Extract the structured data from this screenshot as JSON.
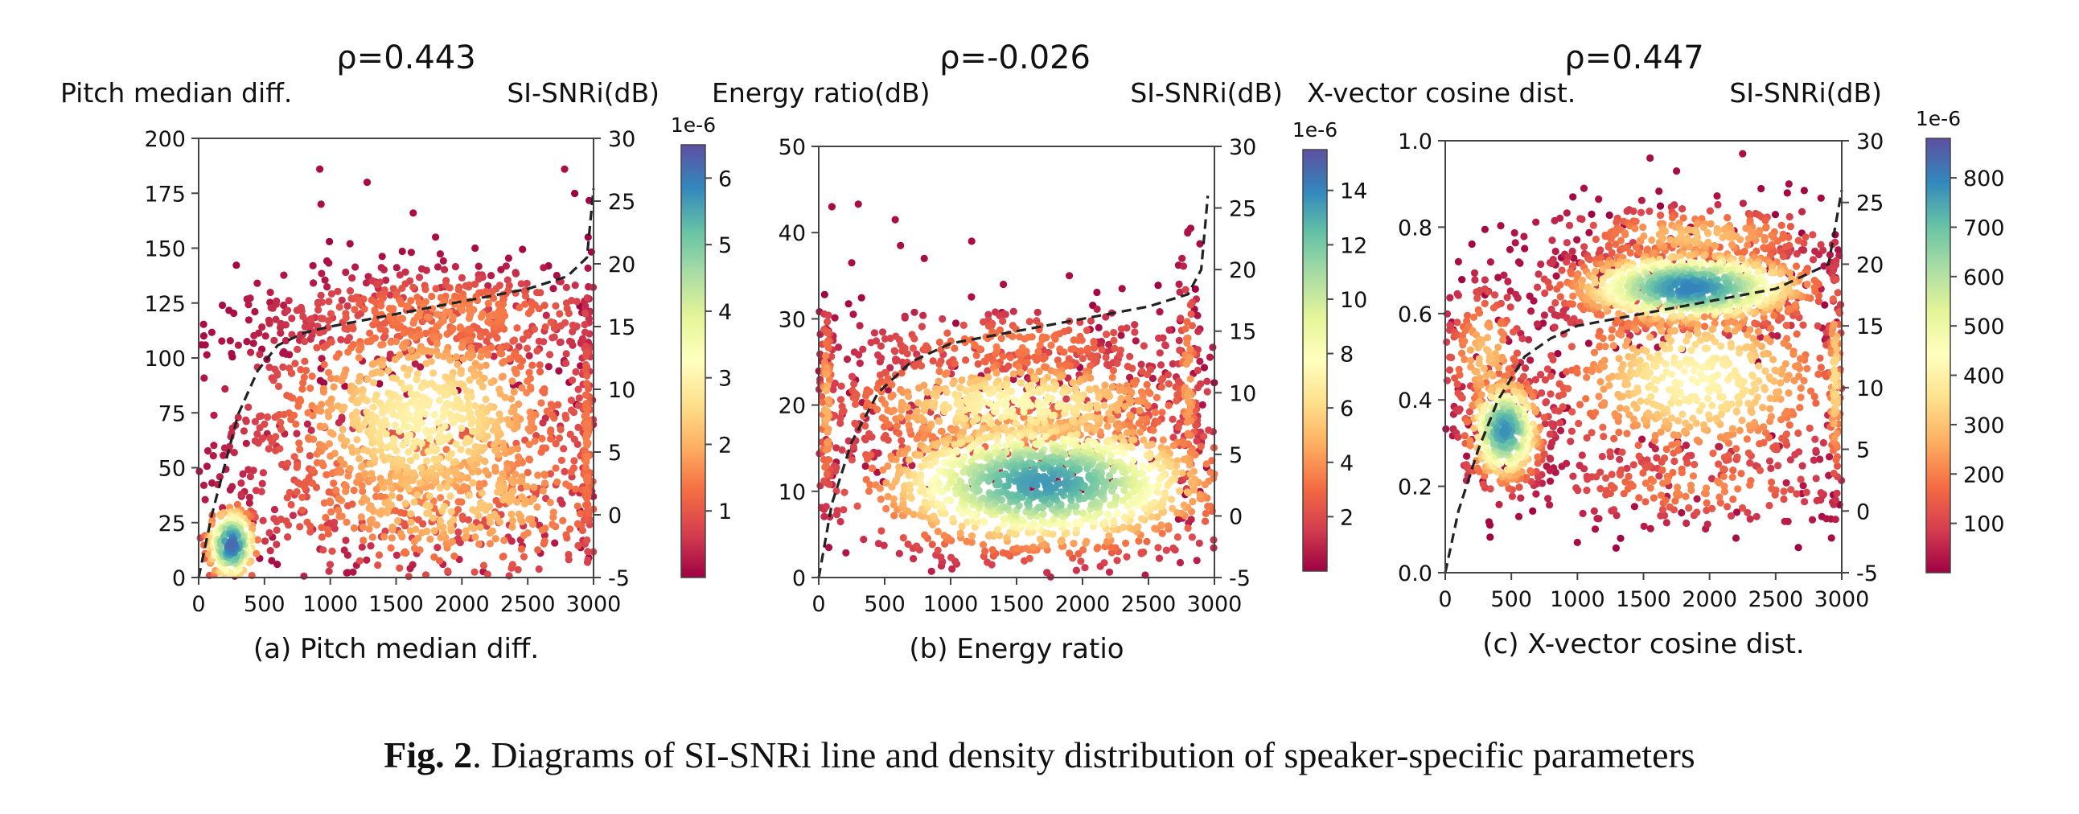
{
  "figure_caption": {
    "label": "Fig. 2",
    "text": ". Diagrams of SI-SNRi line and density distribution of speaker-specific parameters"
  },
  "colormap_stops": [
    "#9e0142",
    "#d53e4f",
    "#f46d43",
    "#fdae61",
    "#fee08b",
    "#ffffbf",
    "#e6f598",
    "#abdda4",
    "#66c2a5",
    "#3288bd",
    "#5e4fa2"
  ],
  "line_color": "#222222",
  "chart_data": [
    {
      "type": "scatter",
      "title": "ρ=0.443",
      "left_axis_label": "Pitch median diff.",
      "right_axis_label": "SI-SNRi(dB)",
      "subcaption": "(a) Pitch median diff.",
      "xlim": [
        0,
        3000
      ],
      "x_ticks": [
        0,
        500,
        1000,
        1500,
        2000,
        2500,
        3000
      ],
      "ylim": [
        0,
        200
      ],
      "y_ticks": [
        0,
        25,
        50,
        75,
        100,
        125,
        150,
        175,
        200
      ],
      "y2lim": [
        -5,
        30
      ],
      "y2_ticks": [
        -5,
        0,
        5,
        10,
        15,
        20,
        25,
        30
      ],
      "colorbar": {
        "exponent_label": "1e-6",
        "ticks": [
          1,
          2,
          3,
          4,
          5,
          6
        ],
        "range": [
          0,
          6.5
        ]
      },
      "si_snri_line": {
        "x": [
          0,
          100,
          200,
          300,
          450,
          600,
          800,
          1000,
          1500,
          2000,
          2500,
          2800,
          2950,
          3000
        ],
        "y": [
          -5,
          0,
          4,
          8,
          11.5,
          13.5,
          14.5,
          15,
          16,
          17,
          18,
          19,
          20.5,
          26
        ]
      },
      "clusters": [
        {
          "x": 250,
          "y": 15,
          "sx": 110,
          "sy": 10,
          "n": 230,
          "density": 6.2
        },
        {
          "x": 1700,
          "y": 72,
          "sx": 700,
          "sy": 30,
          "n": 1150,
          "density": 3.0
        },
        {
          "x": 1900,
          "y": 35,
          "sx": 850,
          "sy": 22,
          "n": 500,
          "density": 2.4
        },
        {
          "x": 1900,
          "y": 120,
          "sx": 800,
          "sy": 12,
          "n": 420,
          "density": 1.6
        },
        {
          "x": 2950,
          "y": 60,
          "sx": 25,
          "sy": 40,
          "n": 140,
          "density": 1.5
        }
      ],
      "outliers": [
        {
          "x": 920,
          "y": 186
        },
        {
          "x": 930,
          "y": 170
        },
        {
          "x": 1280,
          "y": 180
        },
        {
          "x": 1630,
          "y": 166
        },
        {
          "x": 2780,
          "y": 186
        },
        {
          "x": 180,
          "y": 124
        },
        {
          "x": 250,
          "y": 102
        },
        {
          "x": 480,
          "y": 104
        },
        {
          "x": 1150,
          "y": 152
        },
        {
          "x": 1800,
          "y": 155
        },
        {
          "x": 2100,
          "y": 150
        }
      ]
    },
    {
      "type": "scatter",
      "title": "ρ=-0.026",
      "left_axis_label": "Energy ratio(dB)",
      "right_axis_label": "SI-SNRi(dB)",
      "subcaption": "(b) Energy ratio",
      "xlim": [
        0,
        3000
      ],
      "x_ticks": [
        0,
        500,
        1000,
        1500,
        2000,
        2500,
        3000
      ],
      "ylim": [
        0,
        50
      ],
      "y_ticks": [
        0,
        10,
        20,
        30,
        40,
        50
      ],
      "y2lim": [
        -5,
        30
      ],
      "y2_ticks": [
        -5,
        0,
        5,
        10,
        15,
        20,
        25,
        30
      ],
      "colorbar": {
        "exponent_label": "1e-6",
        "ticks": [
          2,
          4,
          6,
          8,
          10,
          12,
          14
        ],
        "range": [
          0,
          15.5
        ]
      },
      "si_snri_line": {
        "x": [
          0,
          100,
          250,
          450,
          700,
          1000,
          1500,
          2000,
          2500,
          2800,
          2900,
          2950
        ],
        "y": [
          -5,
          1,
          6,
          10,
          12.5,
          14,
          15,
          16,
          17,
          18,
          20,
          26
        ]
      },
      "clusters": [
        {
          "x": 1700,
          "y": 11,
          "sx": 750,
          "sy": 4.5,
          "n": 1500,
          "density": 13.5
        },
        {
          "x": 1500,
          "y": 20,
          "sx": 800,
          "sy": 3.5,
          "n": 700,
          "density": 7.5
        },
        {
          "x": 1500,
          "y": 27,
          "sx": 800,
          "sy": 2.5,
          "n": 260,
          "density": 3.5
        },
        {
          "x": 60,
          "y": 20,
          "sx": 30,
          "sy": 7,
          "n": 90,
          "density": 5.0
        },
        {
          "x": 2800,
          "y": 22,
          "sx": 50,
          "sy": 8,
          "n": 100,
          "density": 4.5
        }
      ],
      "outliers": [
        {
          "x": 100,
          "y": 43
        },
        {
          "x": 300,
          "y": 43.3
        },
        {
          "x": 580,
          "y": 41.5
        },
        {
          "x": 250,
          "y": 36.5
        },
        {
          "x": 620,
          "y": 38.5
        },
        {
          "x": 1160,
          "y": 39
        },
        {
          "x": 1900,
          "y": 35
        },
        {
          "x": 2820,
          "y": 40.5
        },
        {
          "x": 2890,
          "y": 38.7
        },
        {
          "x": 800,
          "y": 37
        },
        {
          "x": 1400,
          "y": 34
        },
        {
          "x": 2300,
          "y": 33.5
        }
      ]
    },
    {
      "type": "scatter",
      "title": "ρ=0.447",
      "left_axis_label": "X-vector cosine dist.",
      "right_axis_label": "SI-SNRi(dB)",
      "subcaption": "(c) X-vector cosine dist.",
      "xlim": [
        0,
        3000
      ],
      "x_ticks": [
        0,
        500,
        1000,
        1500,
        2000,
        2500,
        3000
      ],
      "ylim": [
        0,
        1.0
      ],
      "y_ticks": [
        0.0,
        0.2,
        0.4,
        0.6,
        0.8,
        1.0
      ],
      "y_tick_decimals": 1,
      "y2lim": [
        -5,
        30
      ],
      "y2_ticks": [
        -5,
        0,
        5,
        10,
        15,
        20,
        25,
        30
      ],
      "colorbar": {
        "exponent_label": "1e-6",
        "ticks": [
          100,
          200,
          300,
          400,
          500,
          600,
          700,
          800
        ],
        "range": [
          0,
          880
        ]
      },
      "si_snri_line": {
        "x": [
          0,
          100,
          250,
          400,
          600,
          800,
          1000,
          1500,
          2000,
          2500,
          2900,
          3000
        ],
        "y": [
          -5,
          0,
          5,
          9,
          12.5,
          14,
          15,
          16,
          17,
          18,
          20,
          26
        ]
      },
      "clusters": [
        {
          "x": 450,
          "y": 0.33,
          "sx": 160,
          "sy": 0.07,
          "n": 420,
          "density": 780
        },
        {
          "x": 1850,
          "y": 0.66,
          "sx": 520,
          "sy": 0.05,
          "n": 900,
          "density": 800
        },
        {
          "x": 1900,
          "y": 0.45,
          "sx": 650,
          "sy": 0.12,
          "n": 700,
          "density": 420
        },
        {
          "x": 1900,
          "y": 0.78,
          "sx": 600,
          "sy": 0.04,
          "n": 260,
          "density": 300
        },
        {
          "x": 1900,
          "y": 0.2,
          "sx": 650,
          "sy": 0.05,
          "n": 180,
          "density": 220
        },
        {
          "x": 300,
          "y": 0.5,
          "sx": 180,
          "sy": 0.1,
          "n": 160,
          "density": 300
        },
        {
          "x": 2950,
          "y": 0.45,
          "sx": 30,
          "sy": 0.15,
          "n": 120,
          "density": 350
        }
      ],
      "outliers": [
        {
          "x": 1550,
          "y": 0.96
        },
        {
          "x": 2250,
          "y": 0.97
        },
        {
          "x": 1750,
          "y": 0.93
        },
        {
          "x": 1050,
          "y": 0.89
        },
        {
          "x": 2600,
          "y": 0.9
        },
        {
          "x": 100,
          "y": 0.72
        },
        {
          "x": 50,
          "y": 0.58
        },
        {
          "x": 1000,
          "y": 0.07
        },
        {
          "x": 2200,
          "y": 0.08
        },
        {
          "x": 2850,
          "y": 0.13
        }
      ]
    }
  ]
}
